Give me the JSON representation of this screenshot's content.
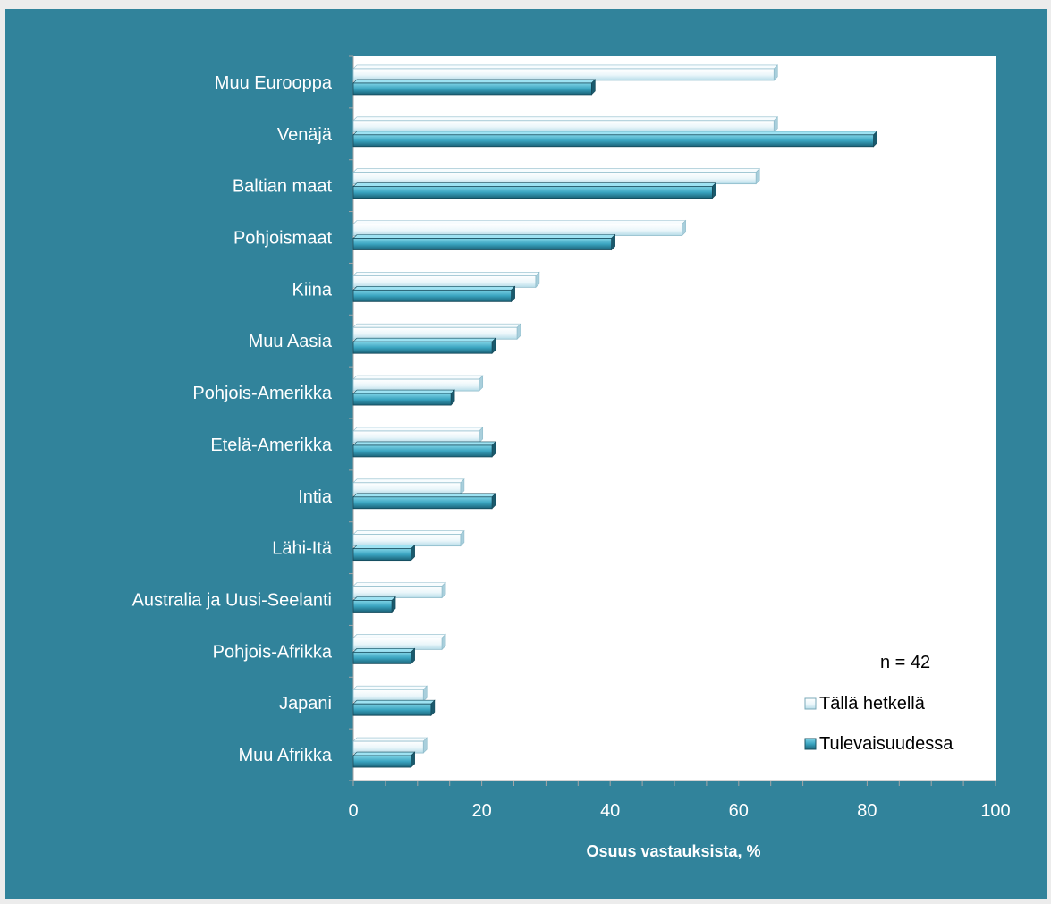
{
  "colors": {
    "frame": "#31839b",
    "plot_area": "#ffffff",
    "bar_current_light": "#eaf6fa",
    "bar_current_dark": "#b6dce8",
    "bar_future_light": "#52bcd6",
    "bar_future_dark": "#206f87",
    "text_light": "#ffffff",
    "text_dark": "#000000"
  },
  "chart_data": {
    "type": "bar",
    "orientation": "horizontal",
    "categories": [
      "Muu Eurooppa",
      "Venäjä",
      "Baltian maat",
      "Pohjoismaat",
      "Kiina",
      "Muu Aasia",
      "Pohjois-Amerikka",
      "Etelä-Amerikka",
      "Intia",
      "Lähi-Itä",
      "Australia ja Uusi-Seelanti",
      "Pohjois-Afrikka",
      "Japani",
      "Muu Afrikka"
    ],
    "series": [
      {
        "name": "Tällä hetkellä",
        "values": [
          65.5,
          65.5,
          62.7,
          51.2,
          28.4,
          25.5,
          19.6,
          19.6,
          16.7,
          16.7,
          13.8,
          13.8,
          10.9,
          10.9
        ]
      },
      {
        "name": "Tulevaisuudessa",
        "values": [
          37.1,
          81.0,
          55.9,
          40.2,
          24.6,
          21.6,
          15.2,
          21.6,
          21.6,
          9.0,
          6.0,
          9.0,
          12.1,
          9.0
        ]
      }
    ],
    "xlim": [
      0,
      100
    ],
    "xticks": [
      0,
      20,
      40,
      60,
      80,
      100
    ],
    "xlabel": "Osuus vastauksista, %",
    "ylabel": "",
    "title": "",
    "annotation": "n = 42",
    "legend_position": "bottom-right",
    "grid": false
  }
}
